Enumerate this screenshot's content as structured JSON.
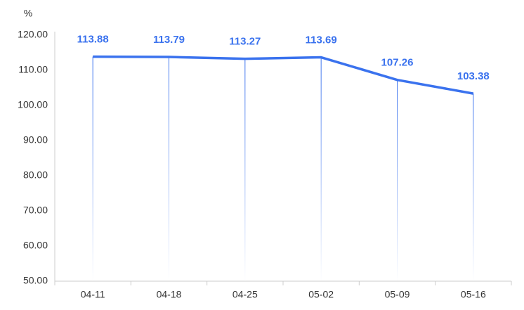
{
  "chart_data": {
    "type": "line",
    "y_label": "%",
    "categories": [
      "04-11",
      "04-18",
      "04-25",
      "05-02",
      "05-09",
      "05-16"
    ],
    "values": [
      113.88,
      113.79,
      113.27,
      113.69,
      107.26,
      103.38
    ],
    "color": "#3a72ee",
    "ylim": [
      50,
      120
    ],
    "yticks": [
      {
        "value": 50,
        "label": "50.00"
      },
      {
        "value": 60,
        "label": "60.00"
      },
      {
        "value": 70,
        "label": "70.00"
      },
      {
        "value": 80,
        "label": "80.00"
      },
      {
        "value": 90,
        "label": "90.00"
      },
      {
        "value": 100,
        "label": "100.00"
      },
      {
        "value": 110,
        "label": "110.00"
      },
      {
        "value": 120,
        "label": "120.00"
      }
    ],
    "grid": false
  }
}
